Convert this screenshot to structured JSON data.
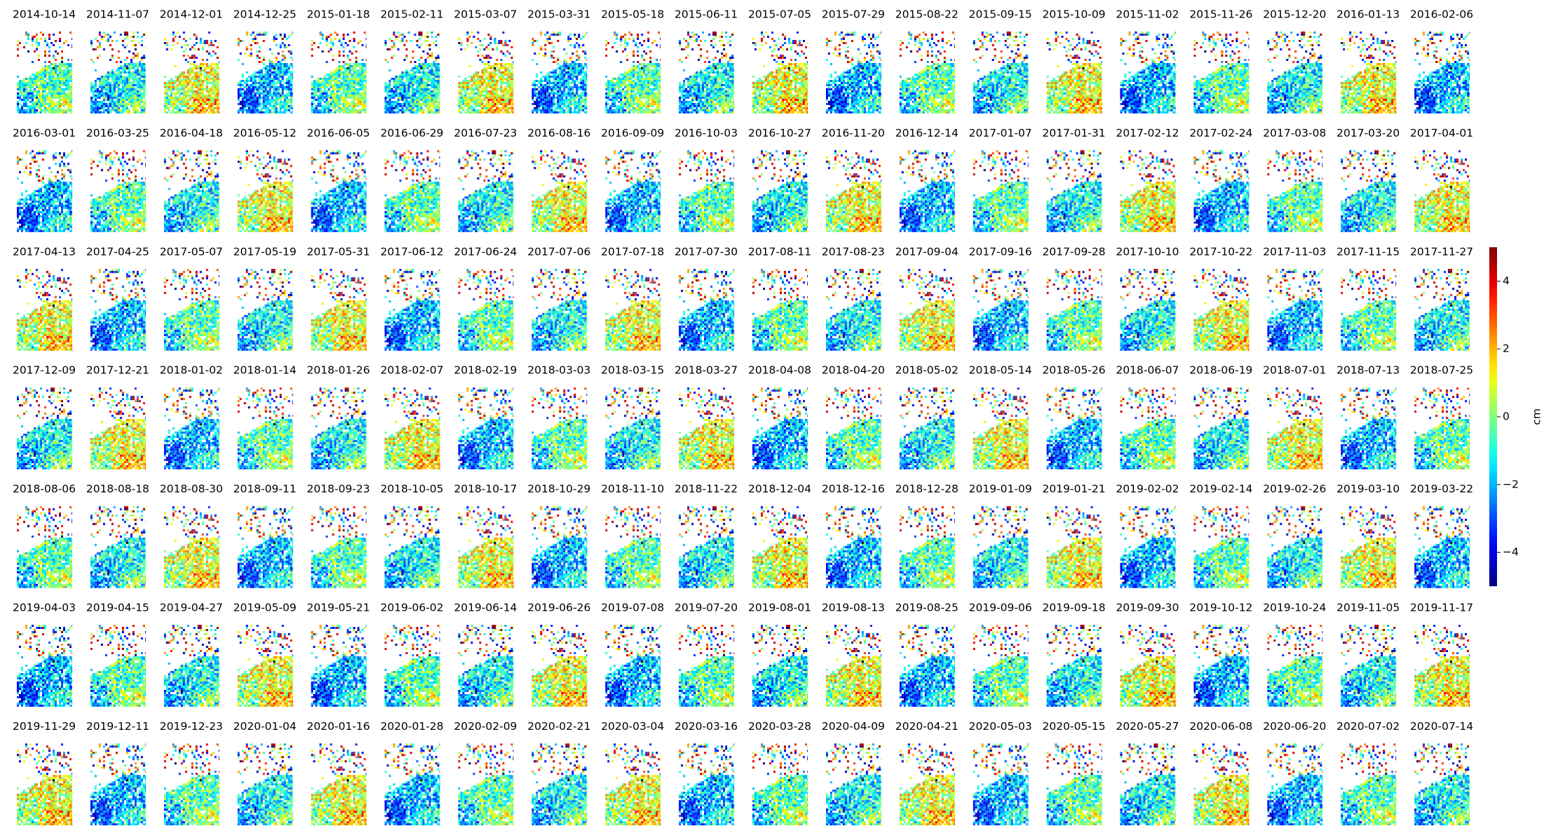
{
  "chart_data": {
    "type": "image-grid",
    "panels": [
      "2014-10-14",
      "2014-11-07",
      "2014-12-01",
      "2014-12-25",
      "2015-01-18",
      "2015-02-11",
      "2015-03-07",
      "2015-03-31",
      "2015-05-18",
      "2015-06-11",
      "2015-07-05",
      "2015-07-29",
      "2015-08-22",
      "2015-09-15",
      "2015-10-09",
      "2015-11-02",
      "2015-11-26",
      "2015-12-20",
      "2016-01-13",
      "2016-02-06",
      "2016-03-01",
      "2016-03-25",
      "2016-04-18",
      "2016-05-12",
      "2016-06-05",
      "2016-06-29",
      "2016-07-23",
      "2016-08-16",
      "2016-09-09",
      "2016-10-03",
      "2016-10-27",
      "2016-11-20",
      "2016-12-14",
      "2017-01-07",
      "2017-01-31",
      "2017-02-12",
      "2017-02-24",
      "2017-03-08",
      "2017-03-20",
      "2017-04-01",
      "2017-04-13",
      "2017-04-25",
      "2017-05-07",
      "2017-05-19",
      "2017-05-31",
      "2017-06-12",
      "2017-06-24",
      "2017-07-06",
      "2017-07-18",
      "2017-07-30",
      "2017-08-11",
      "2017-08-23",
      "2017-09-04",
      "2017-09-16",
      "2017-09-28",
      "2017-10-10",
      "2017-10-22",
      "2017-11-03",
      "2017-11-15",
      "2017-11-27",
      "2017-12-09",
      "2017-12-21",
      "2018-01-02",
      "2018-01-14",
      "2018-01-26",
      "2018-02-07",
      "2018-02-19",
      "2018-03-03",
      "2018-03-15",
      "2018-03-27",
      "2018-04-08",
      "2018-04-20",
      "2018-05-02",
      "2018-05-14",
      "2018-05-26",
      "2018-06-07",
      "2018-06-19",
      "2018-07-01",
      "2018-07-13",
      "2018-07-25",
      "2018-08-06",
      "2018-08-18",
      "2018-08-30",
      "2018-09-11",
      "2018-09-23",
      "2018-10-05",
      "2018-10-17",
      "2018-10-29",
      "2018-11-10",
      "2018-11-22",
      "2018-12-04",
      "2018-12-16",
      "2018-12-28",
      "2019-01-09",
      "2019-01-21",
      "2019-02-02",
      "2019-02-14",
      "2019-02-26",
      "2019-03-10",
      "2019-03-22",
      "2019-04-03",
      "2019-04-15",
      "2019-04-27",
      "2019-05-09",
      "2019-05-21",
      "2019-06-02",
      "2019-06-14",
      "2019-06-26",
      "2019-07-08",
      "2019-07-20",
      "2019-08-01",
      "2019-08-13",
      "2019-08-25",
      "2019-09-06",
      "2019-09-18",
      "2019-09-30",
      "2019-10-12",
      "2019-10-24",
      "2019-11-05",
      "2019-11-17",
      "2019-11-29",
      "2019-12-11",
      "2019-12-23",
      "2020-01-04",
      "2020-01-16",
      "2020-01-28",
      "2020-02-09",
      "2020-02-21",
      "2020-03-04",
      "2020-03-16",
      "2020-03-28",
      "2020-04-09",
      "2020-04-21",
      "2020-05-03",
      "2020-05-15",
      "2020-05-27",
      "2020-06-08",
      "2020-06-20",
      "2020-07-02",
      "2020-07-14"
    ],
    "colorbar": {
      "label": "cm",
      "colormap": "jet",
      "lim": [
        -5,
        5
      ],
      "ticks": [
        {
          "value": -4,
          "label": "−4"
        },
        {
          "value": -2,
          "label": "−2"
        },
        0,
        2,
        4
      ]
    }
  }
}
